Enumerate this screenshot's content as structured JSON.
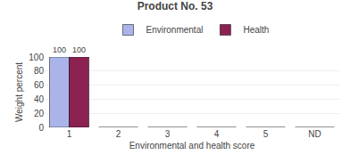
{
  "chart_data": {
    "type": "bar",
    "title": "Product No. 53",
    "xlabel": "Environmental and health score",
    "ylabel": "Weight percent",
    "categories": [
      "1",
      "2",
      "3",
      "4",
      "5",
      "ND"
    ],
    "series": [
      {
        "name": "Environmental",
        "color": "#aab4e8",
        "values": [
          100,
          0,
          0,
          0,
          0,
          0
        ],
        "value_labels": [
          "100",
          null,
          null,
          null,
          null,
          null
        ]
      },
      {
        "name": "Health",
        "color": "#8b2252",
        "values": [
          100,
          0,
          0,
          0,
          0,
          0
        ],
        "value_labels": [
          "100",
          null,
          null,
          null,
          null,
          null
        ]
      }
    ],
    "ylim": [
      0,
      100
    ],
    "yticks": [
      0,
      20,
      40,
      60,
      80,
      100
    ],
    "grid": true,
    "legend": "top",
    "data_labels": true
  }
}
